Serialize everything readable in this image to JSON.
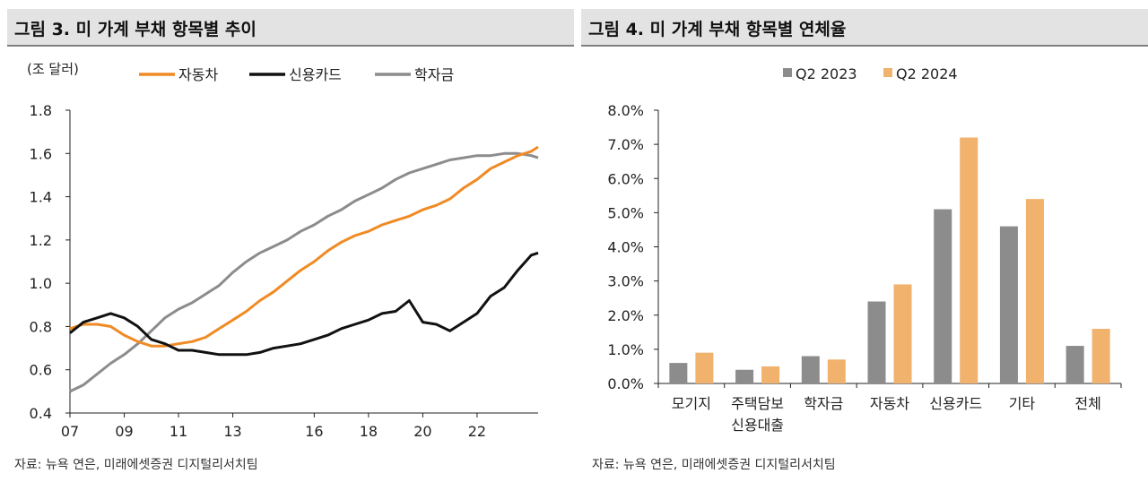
{
  "left": {
    "title": "그림 3. 미 가계 부채 항목별 추이",
    "source": "자료: 뉴욕 연은, 미래에셋증권 디지털리서치팀"
  },
  "right": {
    "title": "그림 4. 미 가계 부채 항목별 연체율",
    "source": "자료: 뉴욕 연은, 미래에셋증권 디지털리서치팀"
  },
  "chart_data": [
    {
      "type": "line",
      "title": "그림 3. 미 가계 부채 항목별 추이",
      "ylabel": "(조 달러)",
      "xlabel": "",
      "ylim": [
        0.4,
        1.8
      ],
      "yticks": [
        "0.4",
        "0.6",
        "0.8",
        "1.0",
        "1.2",
        "1.4",
        "1.6",
        "1.8"
      ],
      "xlim": [
        2007,
        2024.25
      ],
      "xticks": [
        "07",
        "09",
        "11",
        "13",
        "16",
        "18",
        "20",
        "22"
      ],
      "grid": false,
      "legend_position": "top",
      "x": [
        2007.0,
        2007.5,
        2008.0,
        2008.5,
        2009.0,
        2009.5,
        2010.0,
        2010.5,
        2011.0,
        2011.5,
        2012.0,
        2012.5,
        2013.0,
        2013.5,
        2014.0,
        2014.5,
        2015.0,
        2015.5,
        2016.0,
        2016.5,
        2017.0,
        2017.5,
        2018.0,
        2018.5,
        2019.0,
        2019.5,
        2020.0,
        2020.5,
        2021.0,
        2021.5,
        2022.0,
        2022.5,
        2023.0,
        2023.5,
        2024.0,
        2024.25
      ],
      "series": [
        {
          "name": "자동차",
          "color": "#f08a24",
          "values": [
            0.79,
            0.81,
            0.81,
            0.8,
            0.76,
            0.73,
            0.71,
            0.71,
            0.72,
            0.73,
            0.75,
            0.79,
            0.83,
            0.87,
            0.92,
            0.96,
            1.01,
            1.06,
            1.1,
            1.15,
            1.19,
            1.22,
            1.24,
            1.27,
            1.29,
            1.31,
            1.34,
            1.36,
            1.39,
            1.44,
            1.48,
            1.53,
            1.56,
            1.59,
            1.61,
            1.63
          ]
        },
        {
          "name": "신용카드",
          "color": "#111111",
          "values": [
            0.77,
            0.82,
            0.84,
            0.86,
            0.84,
            0.8,
            0.74,
            0.72,
            0.69,
            0.69,
            0.68,
            0.67,
            0.67,
            0.67,
            0.68,
            0.7,
            0.71,
            0.72,
            0.74,
            0.76,
            0.79,
            0.81,
            0.83,
            0.86,
            0.87,
            0.92,
            0.82,
            0.81,
            0.78,
            0.82,
            0.86,
            0.94,
            0.98,
            1.06,
            1.13,
            1.14
          ]
        },
        {
          "name": "학자금",
          "color": "#8c8c8c",
          "values": [
            0.5,
            0.53,
            0.58,
            0.63,
            0.67,
            0.72,
            0.78,
            0.84,
            0.88,
            0.91,
            0.95,
            0.99,
            1.05,
            1.1,
            1.14,
            1.17,
            1.2,
            1.24,
            1.27,
            1.31,
            1.34,
            1.38,
            1.41,
            1.44,
            1.48,
            1.51,
            1.53,
            1.55,
            1.57,
            1.58,
            1.59,
            1.59,
            1.6,
            1.6,
            1.59,
            1.58
          ]
        }
      ]
    },
    {
      "type": "bar",
      "title": "그림 4. 미 가계 부채 항목별 연체율",
      "xlabel": "",
      "ylabel": "",
      "ylim": [
        0,
        8
      ],
      "yticks": [
        "0.0%",
        "1.0%",
        "2.0%",
        "3.0%",
        "4.0%",
        "5.0%",
        "6.0%",
        "7.0%",
        "8.0%"
      ],
      "grid": false,
      "legend_position": "top",
      "categories": [
        "모기지",
        "주택담보\n신용대출",
        "학자금",
        "자동차",
        "신용카드",
        "기타",
        "전체"
      ],
      "series": [
        {
          "name": "Q2 2023",
          "color": "#8c8c8c",
          "values": [
            0.6,
            0.4,
            0.8,
            2.4,
            5.1,
            4.6,
            1.1
          ]
        },
        {
          "name": "Q2 2024",
          "color": "#f0b26c",
          "values": [
            0.9,
            0.5,
            0.7,
            2.9,
            7.2,
            5.4,
            1.6
          ]
        }
      ]
    }
  ]
}
